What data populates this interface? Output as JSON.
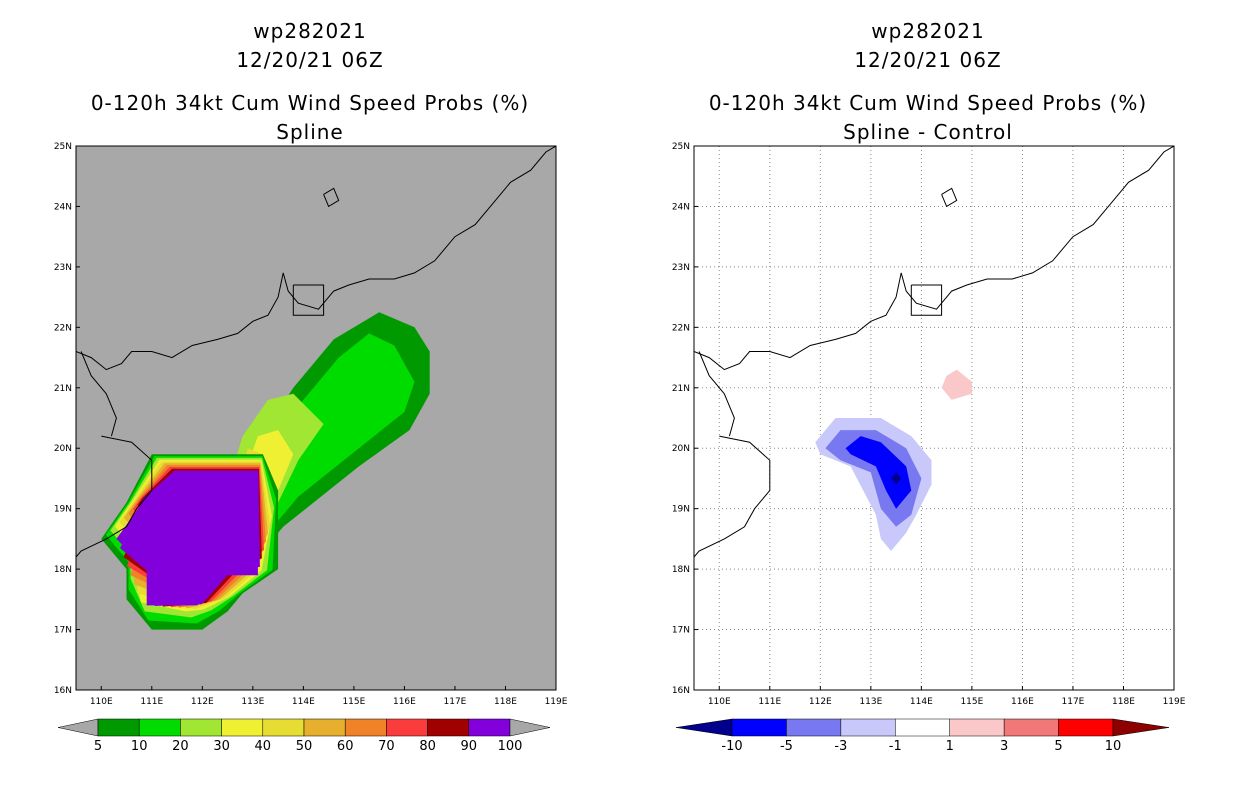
{
  "chart_data": [
    {
      "type": "heatmap",
      "storm_id": "wp282021",
      "datetime": "12/20/21 06Z",
      "title": "0-120h 34kt Cum Wind Speed Probs (%)",
      "subtitle": "Spline",
      "lon_ticks": [
        "110E",
        "111E",
        "112E",
        "113E",
        "114E",
        "115E",
        "116E",
        "117E",
        "118E",
        "119E"
      ],
      "lat_ticks": [
        "16N",
        "17N",
        "18N",
        "19N",
        "20N",
        "21N",
        "22N",
        "23N",
        "24N",
        "25N"
      ],
      "lon_range": [
        109.5,
        119
      ],
      "lat_range": [
        16,
        25
      ],
      "background": "#a8a8a8",
      "colorbar": {
        "labels": [
          "5",
          "10",
          "20",
          "30",
          "40",
          "50",
          "60",
          "70",
          "80",
          "90",
          "100"
        ],
        "colors": [
          "#009a00",
          "#00dc00",
          "#a0e632",
          "#f0f032",
          "#e6dc32",
          "#e6af2d",
          "#f08228",
          "#fa3c3c",
          "#a00000",
          "#8200dc"
        ],
        "under": "#a8a8a8",
        "over": "#a8a8a8"
      },
      "contours": [
        {
          "level": 5,
          "color": "#009a00",
          "points": [
            [
              115.5,
              22.25
            ],
            [
              116.2,
              22.0
            ],
            [
              116.5,
              21.6
            ],
            [
              116.5,
              20.9
            ],
            [
              116.1,
              20.3
            ],
            [
              115.1,
              19.7
            ],
            [
              113.6,
              18.7
            ],
            [
              112.9,
              18.0
            ],
            [
              112.4,
              17.6
            ],
            [
              111.9,
              17.5
            ],
            [
              111.6,
              17.6
            ],
            [
              111.8,
              18.3
            ],
            [
              112.6,
              19.2
            ],
            [
              113.1,
              20.1
            ],
            [
              113.8,
              21.0
            ],
            [
              114.6,
              21.8
            ]
          ]
        },
        {
          "level": 10,
          "color": "#00dc00",
          "points": [
            [
              115.3,
              21.9
            ],
            [
              115.8,
              21.7
            ],
            [
              116.2,
              21.1
            ],
            [
              116.0,
              20.6
            ],
            [
              115.1,
              20.0
            ],
            [
              113.9,
              19.2
            ],
            [
              113.1,
              18.4
            ],
            [
              112.3,
              18.0
            ],
            [
              112.2,
              18.5
            ],
            [
              112.8,
              19.3
            ],
            [
              113.4,
              20.2
            ],
            [
              114.2,
              21.0
            ],
            [
              114.7,
              21.5
            ]
          ]
        },
        {
          "level": 20,
          "color": "#a0e632",
          "points": [
            [
              113.8,
              20.9
            ],
            [
              114.4,
              20.4
            ],
            [
              113.9,
              19.8
            ],
            [
              113.5,
              19.1
            ],
            [
              112.8,
              18.7
            ],
            [
              112.5,
              19.4
            ],
            [
              112.8,
              20.2
            ],
            [
              113.3,
              20.8
            ]
          ]
        },
        {
          "level": 30,
          "color": "#f0f032",
          "points": [
            [
              113.5,
              20.3
            ],
            [
              113.8,
              19.9
            ],
            [
              113.5,
              19.3
            ],
            [
              113.0,
              18.9
            ],
            [
              112.8,
              19.5
            ],
            [
              113.1,
              20.2
            ]
          ]
        },
        {
          "level": 40,
          "color": "#e6dc32",
          "points": [
            [
              112.9,
              20.0
            ],
            [
              113.2,
              19.9
            ],
            [
              113.0,
              19.5
            ],
            [
              112.8,
              19.7
            ]
          ]
        }
      ],
      "filled_region": {
        "ring_levels": [
          5,
          10,
          20,
          30,
          40,
          50,
          60,
          70,
          80,
          90
        ],
        "outer": [
          [
            111.0,
            19.9
          ],
          [
            113.2,
            19.9
          ],
          [
            113.5,
            19.3
          ],
          [
            113.5,
            18.0
          ],
          [
            112.8,
            17.6
          ],
          [
            112.5,
            17.3
          ],
          [
            112.0,
            17.0
          ],
          [
            111.0,
            17.0
          ],
          [
            110.5,
            17.5
          ],
          [
            110.5,
            18.0
          ],
          [
            110.0,
            18.5
          ],
          [
            110.5,
            19.1
          ]
        ],
        "inner": [
          [
            111.5,
            19.6
          ],
          [
            113.1,
            19.6
          ],
          [
            113.1,
            17.9
          ],
          [
            112.4,
            17.9
          ],
          [
            111.9,
            17.4
          ],
          [
            110.9,
            17.4
          ],
          [
            110.9,
            18.0
          ],
          [
            110.3,
            18.5
          ],
          [
            110.9,
            19.2
          ]
        ]
      }
    },
    {
      "type": "heatmap",
      "storm_id": "wp282021",
      "datetime": "12/20/21 06Z",
      "title": "0-120h 34kt Cum Wind Speed Probs (%)",
      "subtitle": "Spline - Control",
      "lon_ticks": [
        "110E",
        "111E",
        "112E",
        "113E",
        "114E",
        "115E",
        "116E",
        "117E",
        "118E",
        "119E"
      ],
      "lat_ticks": [
        "16N",
        "17N",
        "18N",
        "19N",
        "20N",
        "21N",
        "22N",
        "23N",
        "24N",
        "25N"
      ],
      "lon_range": [
        109.5,
        119
      ],
      "lat_range": [
        16,
        25
      ],
      "background": "#ffffff",
      "colorbar": {
        "labels": [
          "-10",
          "-5",
          "-3",
          "-1",
          "1",
          "3",
          "5",
          "10"
        ],
        "colors": [
          "#0000ff",
          "#7878f0",
          "#c8c8fa",
          "#ffffff",
          "#fac8c8",
          "#f07878",
          "#ff0000"
        ],
        "under": "#00008c",
        "over": "#8c0000"
      },
      "contours": [
        {
          "level": 1,
          "color": "#fac8c8",
          "points": [
            [
              114.7,
              21.3
            ],
            [
              115.0,
              21.1
            ],
            [
              115.0,
              20.9
            ],
            [
              114.6,
              20.8
            ],
            [
              114.4,
              21.0
            ],
            [
              114.5,
              21.2
            ]
          ]
        },
        {
          "level": -1,
          "color": "#c8c8fa",
          "points": [
            [
              112.3,
              20.5
            ],
            [
              113.2,
              20.5
            ],
            [
              113.8,
              20.2
            ],
            [
              114.2,
              19.8
            ],
            [
              114.2,
              19.4
            ],
            [
              113.9,
              18.9
            ],
            [
              113.7,
              18.6
            ],
            [
              113.4,
              18.3
            ],
            [
              113.2,
              18.5
            ],
            [
              113.1,
              18.9
            ],
            [
              112.6,
              19.7
            ],
            [
              112.0,
              19.9
            ],
            [
              111.9,
              20.1
            ]
          ]
        },
        {
          "level": -3,
          "color": "#7878f0",
          "points": [
            [
              112.4,
              20.3
            ],
            [
              113.1,
              20.3
            ],
            [
              113.7,
              20.0
            ],
            [
              114.0,
              19.5
            ],
            [
              113.8,
              18.9
            ],
            [
              113.5,
              18.7
            ],
            [
              113.2,
              19.0
            ],
            [
              113.0,
              19.6
            ],
            [
              112.4,
              19.8
            ],
            [
              112.1,
              20.0
            ]
          ]
        },
        {
          "level": -5,
          "color": "#0000ff",
          "points": [
            [
              112.8,
              20.2
            ],
            [
              113.2,
              20.1
            ],
            [
              113.7,
              19.7
            ],
            [
              113.8,
              19.3
            ],
            [
              113.5,
              19.0
            ],
            [
              113.3,
              19.3
            ],
            [
              113.1,
              19.7
            ],
            [
              112.6,
              19.9
            ],
            [
              112.5,
              20.0
            ]
          ]
        },
        {
          "level": -10,
          "color": "#00008c",
          "points": [
            [
              113.5,
              19.6
            ],
            [
              113.6,
              19.5
            ],
            [
              113.5,
              19.4
            ],
            [
              113.4,
              19.5
            ]
          ]
        }
      ]
    }
  ]
}
